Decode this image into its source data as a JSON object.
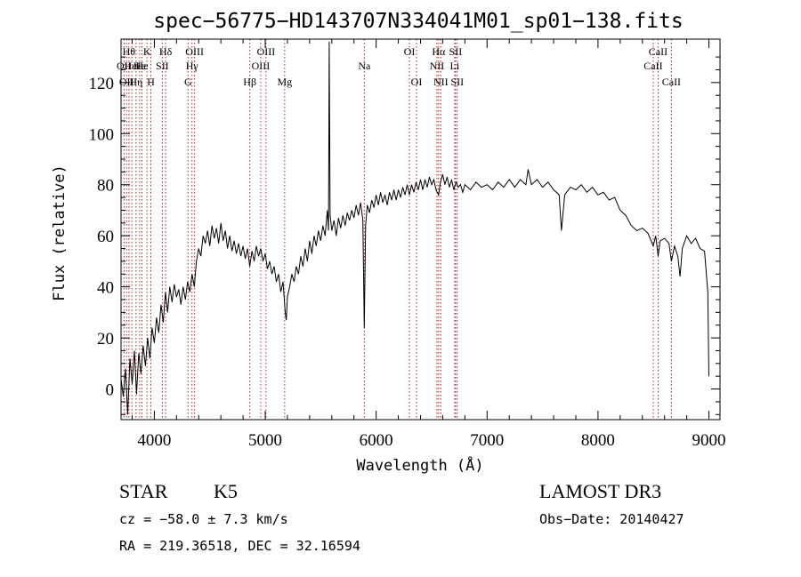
{
  "chart_data": {
    "type": "line",
    "title": "spec−56775−HD143707N334041M01_sp01−138.fits",
    "xlabel": "Wavelength (Å)",
    "ylabel": "Flux (relative)",
    "xlim": [
      3700,
      9100
    ],
    "ylim": [
      -12,
      137
    ],
    "xticks": [
      4000,
      5000,
      6000,
      7000,
      8000,
      9000
    ],
    "yticks": [
      0,
      20,
      40,
      60,
      80,
      100,
      120
    ],
    "grid": false,
    "series": [
      {
        "color": "#000000",
        "points": [
          [
            3700,
            4
          ],
          [
            3720,
            -3
          ],
          [
            3740,
            8
          ],
          [
            3760,
            -10
          ],
          [
            3780,
            12
          ],
          [
            3800,
            2
          ],
          [
            3820,
            15
          ],
          [
            3840,
            -2
          ],
          [
            3860,
            14
          ],
          [
            3880,
            6
          ],
          [
            3900,
            17
          ],
          [
            3920,
            9
          ],
          [
            3940,
            20
          ],
          [
            3960,
            12
          ],
          [
            3980,
            24
          ],
          [
            4000,
            18
          ],
          [
            4020,
            28
          ],
          [
            4040,
            22
          ],
          [
            4060,
            33
          ],
          [
            4080,
            26
          ],
          [
            4100,
            38
          ],
          [
            4120,
            30
          ],
          [
            4140,
            40
          ],
          [
            4160,
            34
          ],
          [
            4180,
            41
          ],
          [
            4200,
            36
          ],
          [
            4220,
            39
          ],
          [
            4240,
            33
          ],
          [
            4260,
            40
          ],
          [
            4280,
            35
          ],
          [
            4300,
            42
          ],
          [
            4320,
            38
          ],
          [
            4340,
            45
          ],
          [
            4360,
            40
          ],
          [
            4380,
            50
          ],
          [
            4400,
            55
          ],
          [
            4420,
            52
          ],
          [
            4440,
            60
          ],
          [
            4460,
            57
          ],
          [
            4480,
            62
          ],
          [
            4500,
            56
          ],
          [
            4520,
            64
          ],
          [
            4540,
            59
          ],
          [
            4560,
            63
          ],
          [
            4580,
            57
          ],
          [
            4600,
            65
          ],
          [
            4620,
            58
          ],
          [
            4640,
            62
          ],
          [
            4660,
            55
          ],
          [
            4680,
            60
          ],
          [
            4700,
            54
          ],
          [
            4720,
            58
          ],
          [
            4740,
            53
          ],
          [
            4760,
            57
          ],
          [
            4780,
            52
          ],
          [
            4800,
            56
          ],
          [
            4820,
            51
          ],
          [
            4840,
            55
          ],
          [
            4860,
            48
          ],
          [
            4880,
            54
          ],
          [
            4900,
            50
          ],
          [
            4920,
            56
          ],
          [
            4940,
            52
          ],
          [
            4960,
            55
          ],
          [
            4980,
            50
          ],
          [
            5000,
            53
          ],
          [
            5020,
            47
          ],
          [
            5040,
            50
          ],
          [
            5060,
            45
          ],
          [
            5080,
            48
          ],
          [
            5100,
            42
          ],
          [
            5120,
            45
          ],
          [
            5140,
            38
          ],
          [
            5160,
            42
          ],
          [
            5180,
            30
          ],
          [
            5190,
            27
          ],
          [
            5200,
            36
          ],
          [
            5220,
            40
          ],
          [
            5240,
            45
          ],
          [
            5260,
            42
          ],
          [
            5280,
            48
          ],
          [
            5300,
            45
          ],
          [
            5320,
            52
          ],
          [
            5340,
            48
          ],
          [
            5360,
            55
          ],
          [
            5380,
            50
          ],
          [
            5400,
            58
          ],
          [
            5420,
            53
          ],
          [
            5440,
            60
          ],
          [
            5460,
            56
          ],
          [
            5480,
            62
          ],
          [
            5500,
            58
          ],
          [
            5520,
            64
          ],
          [
            5540,
            60
          ],
          [
            5560,
            70
          ],
          [
            5570,
            62
          ],
          [
            5577,
            136
          ],
          [
            5585,
            68
          ],
          [
            5600,
            62
          ],
          [
            5620,
            66
          ],
          [
            5640,
            60
          ],
          [
            5660,
            67
          ],
          [
            5680,
            63
          ],
          [
            5700,
            68
          ],
          [
            5720,
            64
          ],
          [
            5740,
            69
          ],
          [
            5760,
            66
          ],
          [
            5780,
            70
          ],
          [
            5800,
            67
          ],
          [
            5820,
            72
          ],
          [
            5840,
            68
          ],
          [
            5860,
            73
          ],
          [
            5880,
            66
          ],
          [
            5893,
            24
          ],
          [
            5905,
            64
          ],
          [
            5920,
            72
          ],
          [
            5940,
            69
          ],
          [
            5960,
            74
          ],
          [
            5980,
            71
          ],
          [
            6000,
            76
          ],
          [
            6020,
            72
          ],
          [
            6040,
            77
          ],
          [
            6060,
            73
          ],
          [
            6080,
            76
          ],
          [
            6100,
            72
          ],
          [
            6120,
            77
          ],
          [
            6140,
            74
          ],
          [
            6160,
            78
          ],
          [
            6180,
            74
          ],
          [
            6200,
            78
          ],
          [
            6220,
            75
          ],
          [
            6240,
            79
          ],
          [
            6260,
            76
          ],
          [
            6280,
            80
          ],
          [
            6300,
            76
          ],
          [
            6320,
            80
          ],
          [
            6340,
            77
          ],
          [
            6360,
            81
          ],
          [
            6380,
            78
          ],
          [
            6400,
            82
          ],
          [
            6420,
            78
          ],
          [
            6440,
            82
          ],
          [
            6460,
            79
          ],
          [
            6480,
            83
          ],
          [
            6500,
            80
          ],
          [
            6520,
            82
          ],
          [
            6540,
            78
          ],
          [
            6563,
            76
          ],
          [
            6580,
            81
          ],
          [
            6600,
            84
          ],
          [
            6620,
            80
          ],
          [
            6640,
            83
          ],
          [
            6660,
            79
          ],
          [
            6680,
            82
          ],
          [
            6700,
            78
          ],
          [
            6720,
            81
          ],
          [
            6740,
            79
          ],
          [
            6760,
            80
          ],
          [
            6780,
            77
          ],
          [
            6800,
            80
          ],
          [
            6850,
            78
          ],
          [
            6900,
            81
          ],
          [
            6950,
            79
          ],
          [
            7000,
            80
          ],
          [
            7050,
            78
          ],
          [
            7100,
            81
          ],
          [
            7150,
            79
          ],
          [
            7200,
            82
          ],
          [
            7250,
            79
          ],
          [
            7300,
            82
          ],
          [
            7350,
            80
          ],
          [
            7370,
            86
          ],
          [
            7400,
            80
          ],
          [
            7450,
            82
          ],
          [
            7500,
            79
          ],
          [
            7550,
            81
          ],
          [
            7600,
            78
          ],
          [
            7650,
            76
          ],
          [
            7670,
            62
          ],
          [
            7700,
            76
          ],
          [
            7750,
            79
          ],
          [
            7800,
            78
          ],
          [
            7850,
            80
          ],
          [
            7900,
            77
          ],
          [
            7950,
            79
          ],
          [
            8000,
            76
          ],
          [
            8050,
            77
          ],
          [
            8100,
            74
          ],
          [
            8150,
            75
          ],
          [
            8200,
            70
          ],
          [
            8250,
            68
          ],
          [
            8300,
            64
          ],
          [
            8350,
            62
          ],
          [
            8400,
            63
          ],
          [
            8450,
            61
          ],
          [
            8498,
            56
          ],
          [
            8520,
            60
          ],
          [
            8542,
            52
          ],
          [
            8560,
            58
          ],
          [
            8600,
            59
          ],
          [
            8640,
            57
          ],
          [
            8662,
            50
          ],
          [
            8690,
            56
          ],
          [
            8720,
            52
          ],
          [
            8740,
            44
          ],
          [
            8760,
            55
          ],
          [
            8800,
            60
          ],
          [
            8840,
            57
          ],
          [
            8880,
            59
          ],
          [
            8920,
            55
          ],
          [
            8960,
            54
          ],
          [
            8990,
            38
          ],
          [
            9000,
            5
          ]
        ]
      }
    ],
    "line_markers": [
      {
        "x": 3727,
        "label": "OII",
        "row": 2
      },
      {
        "x": 3750,
        "label": "OII",
        "row": 3
      },
      {
        "x": 3771,
        "label": "Hθ",
        "row": 1
      },
      {
        "x": 3798,
        "label": "Hei",
        "row": 2
      },
      {
        "x": 3835,
        "label": "Hη",
        "row": 3
      },
      {
        "x": 3868,
        "label": "He",
        "row": 2
      },
      {
        "x": 3889,
        "label": "He",
        "row": 2
      },
      {
        "x": 3934,
        "label": "K",
        "row": 1
      },
      {
        "x": 3969,
        "label": "H",
        "row": 3
      },
      {
        "x": 4072,
        "label": "SII",
        "row": 2
      },
      {
        "x": 4102,
        "label": "Hδ",
        "row": 1
      },
      {
        "x": 4304,
        "label": "G",
        "row": 3
      },
      {
        "x": 4340,
        "label": "Hγ",
        "row": 2
      },
      {
        "x": 4363,
        "label": "OIII",
        "row": 1
      },
      {
        "x": 4861,
        "label": "Hβ",
        "row": 3
      },
      {
        "x": 4959,
        "label": "OIII",
        "row": 2
      },
      {
        "x": 5007,
        "label": "OIII",
        "row": 1
      },
      {
        "x": 5175,
        "label": "Mg",
        "row": 3
      },
      {
        "x": 5893,
        "label": "Na",
        "row": 2
      },
      {
        "x": 6300,
        "label": "OI",
        "row": 1
      },
      {
        "x": 6364,
        "label": "OI",
        "row": 3
      },
      {
        "x": 6548,
        "label": "NII",
        "row": 2
      },
      {
        "x": 6563,
        "label": "Hα",
        "row": 1
      },
      {
        "x": 6583,
        "label": "NII",
        "row": 3
      },
      {
        "x": 6708,
        "label": "Li",
        "row": 2
      },
      {
        "x": 6716,
        "label": "SII",
        "row": 1
      },
      {
        "x": 6731,
        "label": "SII",
        "row": 3
      },
      {
        "x": 8498,
        "label": "CaII",
        "row": 2
      },
      {
        "x": 8542,
        "label": "CaII",
        "row": 1
      },
      {
        "x": 8662,
        "label": "CaII",
        "row": 3
      }
    ]
  },
  "info": {
    "class": "STAR",
    "subclass": "K5",
    "survey": "LAMOST DR3",
    "cz": "cz = −58.0 ± 7.3 km/s",
    "obs_date": "Obs−Date: 20140427",
    "coords": "RA = 219.36518, DEC =  32.16594"
  },
  "colors": {
    "spectrum": "#000000",
    "line_markers": "#b02020",
    "axes": "#000000",
    "background": "#ffffff"
  }
}
